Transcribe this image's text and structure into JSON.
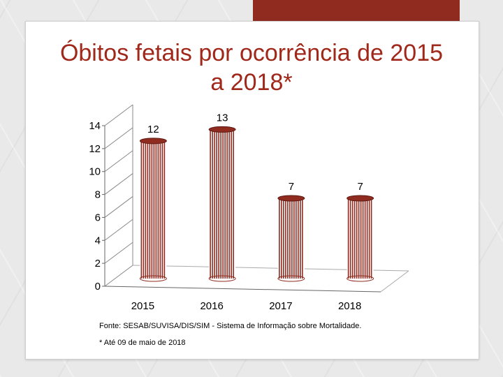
{
  "slide": {
    "title_line1": "Óbitos fetais por ocorrência de 2015",
    "title_line2": "a 2018*",
    "source_note": "Fonte: SESAB/SUVISA/DIS/SIM - Sistema de Informação sobre Mortalidade.",
    "date_note": "* Até 09 de maio de 2018",
    "accent_color": "#8f2b1f",
    "title_color": "#a0281a"
  },
  "chart_data": {
    "type": "bar",
    "title": "Óbitos fetais por ocorrência de 2015 a 2018*",
    "categories": [
      "2015",
      "2016",
      "2017",
      "2018"
    ],
    "values": [
      12,
      13,
      7,
      7
    ],
    "data_labels": [
      "12",
      "13",
      "7",
      "7"
    ],
    "y_ticks": [
      "0",
      "2",
      "4",
      "6",
      "8",
      "10",
      "12",
      "14"
    ],
    "ylim": [
      0,
      14
    ],
    "xlabel": "",
    "ylabel": "",
    "bar_color": "#8f2b1f",
    "style": "3d-cylinder"
  }
}
